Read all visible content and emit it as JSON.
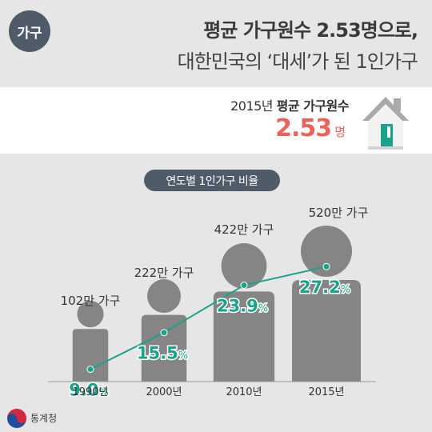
{
  "badge": "가구",
  "title_line1": "평균 가구원수 2.53명으로,",
  "title_line2": "대한민국의 ‘대세’가 된 1인가구",
  "average": {
    "label_prefix": "2015년 ",
    "label_bold": "평균 가구원수",
    "value": "2.53",
    "unit": "명"
  },
  "colors": {
    "accent_green": "#1aa38a",
    "accent_red": "#e8635b",
    "figure_gray": "#858585",
    "dark": "#4f5b68"
  },
  "chart_data": {
    "type": "line",
    "title": "연도별 1인가구 비율",
    "categories": [
      "1990년",
      "2000년",
      "2010년",
      "2015년"
    ],
    "values": [
      9.0,
      15.5,
      23.9,
      27.2
    ],
    "value_labels": [
      "9.0",
      "15.5",
      "23.9",
      "27.2"
    ],
    "value_unit": "%",
    "household_labels": [
      "102만 가구",
      "222만 가구",
      "422만 가구",
      "520만 가구"
    ],
    "households_10k": [
      102,
      222,
      422,
      520
    ]
  },
  "logo_text": "통계청"
}
